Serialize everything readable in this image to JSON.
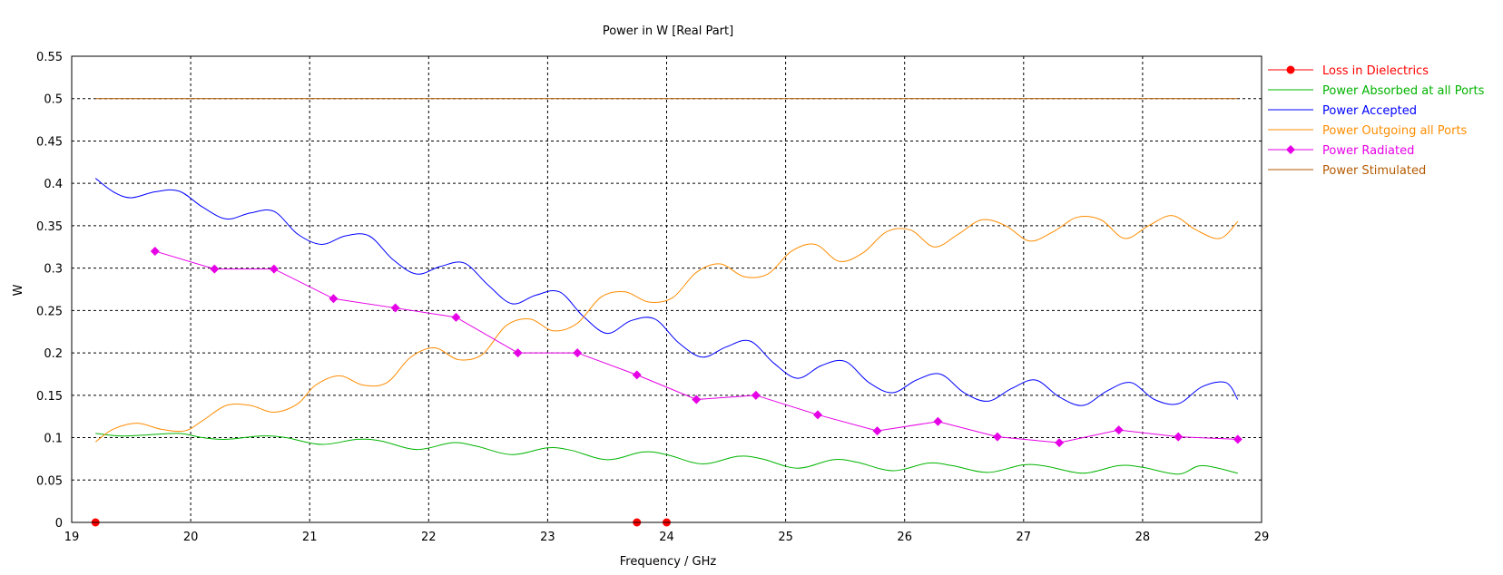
{
  "chart_data": {
    "type": "line",
    "title": "Power in W [Real Part]",
    "xlabel": "Frequency / GHz",
    "ylabel": "W",
    "xlim": [
      19,
      29
    ],
    "ylim": [
      0,
      0.55
    ],
    "x_ticks": [
      19,
      20,
      21,
      22,
      23,
      24,
      25,
      26,
      27,
      28,
      29
    ],
    "y_ticks": [
      0,
      0.05,
      0.1,
      0.15,
      0.2,
      0.25,
      0.3,
      0.35,
      0.4,
      0.45,
      0.5,
      0.55
    ],
    "x_tick_labels": [
      "19",
      "20",
      "21",
      "22",
      "23",
      "24",
      "25",
      "26",
      "27",
      "28",
      "29"
    ],
    "y_tick_labels": [
      "0",
      "0.05",
      "0.1",
      "0.15",
      "0.2",
      "0.25",
      "0.3",
      "0.35",
      "0.4",
      "0.45",
      "0.5",
      "0.55"
    ],
    "grid": true,
    "legend_position": "right",
    "series": [
      {
        "name": "Loss in Dielectrics",
        "color": "#ff0000",
        "marker": "circle",
        "x": [
          19.2,
          23.75,
          24.0,
          28.8
        ],
        "y": [
          0,
          0,
          0,
          0
        ],
        "marker_x": [
          19.2,
          23.75,
          24.0
        ]
      },
      {
        "name": "Power Absorbed at all Ports",
        "color": "#00b400",
        "marker": "none",
        "x": [
          19.2,
          19.4,
          19.6,
          19.9,
          20.1,
          20.3,
          20.6,
          20.8,
          21.1,
          21.4,
          21.6,
          21.9,
          22.2,
          22.4,
          22.7,
          23.0,
          23.2,
          23.5,
          23.8,
          24.0,
          24.3,
          24.6,
          24.8,
          25.1,
          25.4,
          25.6,
          25.9,
          26.2,
          26.4,
          26.7,
          27.0,
          27.2,
          27.5,
          27.8,
          28.0,
          28.3,
          28.5,
          28.8
        ],
        "y": [
          0.105,
          0.102,
          0.103,
          0.105,
          0.1,
          0.098,
          0.102,
          0.1,
          0.092,
          0.098,
          0.096,
          0.086,
          0.094,
          0.09,
          0.08,
          0.088,
          0.085,
          0.074,
          0.083,
          0.08,
          0.069,
          0.078,
          0.075,
          0.064,
          0.074,
          0.071,
          0.061,
          0.07,
          0.067,
          0.059,
          0.068,
          0.066,
          0.058,
          0.067,
          0.065,
          0.057,
          0.067,
          0.058
        ]
      },
      {
        "name": "Power Accepted",
        "color": "#0000ff",
        "marker": "none",
        "x": [
          19.2,
          19.35,
          19.5,
          19.7,
          19.9,
          20.1,
          20.3,
          20.5,
          20.7,
          20.9,
          21.1,
          21.3,
          21.5,
          21.7,
          21.9,
          22.1,
          22.3,
          22.5,
          22.7,
          22.9,
          23.1,
          23.3,
          23.5,
          23.7,
          23.9,
          24.1,
          24.3,
          24.5,
          24.7,
          24.9,
          25.1,
          25.3,
          25.5,
          25.7,
          25.9,
          26.1,
          26.3,
          26.5,
          26.7,
          26.9,
          27.1,
          27.3,
          27.5,
          27.7,
          27.9,
          28.1,
          28.3,
          28.5,
          28.7,
          28.8
        ],
        "y": [
          0.406,
          0.39,
          0.383,
          0.39,
          0.391,
          0.372,
          0.358,
          0.365,
          0.367,
          0.34,
          0.328,
          0.338,
          0.338,
          0.31,
          0.293,
          0.302,
          0.306,
          0.28,
          0.258,
          0.268,
          0.272,
          0.243,
          0.223,
          0.238,
          0.24,
          0.212,
          0.195,
          0.207,
          0.214,
          0.188,
          0.17,
          0.185,
          0.19,
          0.165,
          0.153,
          0.168,
          0.175,
          0.153,
          0.143,
          0.158,
          0.168,
          0.148,
          0.138,
          0.155,
          0.165,
          0.145,
          0.14,
          0.16,
          0.165,
          0.145
        ]
      },
      {
        "name": "Power Outgoing all Ports",
        "color": "#ff8c00",
        "marker": "none",
        "x": [
          19.2,
          19.35,
          19.55,
          19.75,
          19.95,
          20.1,
          20.3,
          20.5,
          20.7,
          20.9,
          21.05,
          21.25,
          21.45,
          21.65,
          21.85,
          22.05,
          22.25,
          22.45,
          22.65,
          22.85,
          23.05,
          23.25,
          23.45,
          23.65,
          23.85,
          24.05,
          24.25,
          24.45,
          24.65,
          24.85,
          25.05,
          25.25,
          25.45,
          25.65,
          25.85,
          26.05,
          26.25,
          26.45,
          26.65,
          26.85,
          27.05,
          27.25,
          27.45,
          27.65,
          27.85,
          28.05,
          28.25,
          28.45,
          28.65,
          28.8
        ],
        "y": [
          0.095,
          0.11,
          0.117,
          0.11,
          0.108,
          0.12,
          0.138,
          0.138,
          0.13,
          0.14,
          0.162,
          0.173,
          0.162,
          0.165,
          0.195,
          0.206,
          0.192,
          0.198,
          0.232,
          0.24,
          0.226,
          0.235,
          0.266,
          0.272,
          0.26,
          0.265,
          0.295,
          0.305,
          0.29,
          0.293,
          0.32,
          0.328,
          0.308,
          0.318,
          0.343,
          0.345,
          0.325,
          0.34,
          0.357,
          0.35,
          0.332,
          0.343,
          0.36,
          0.357,
          0.335,
          0.35,
          0.362,
          0.345,
          0.335,
          0.355
        ]
      },
      {
        "name": "Power Radiated",
        "color": "#e600e6",
        "marker": "diamond",
        "x": [
          19.7,
          20.2,
          20.7,
          21.2,
          21.72,
          22.23,
          22.75,
          23.25,
          23.75,
          24.25,
          24.75,
          25.27,
          25.77,
          26.28,
          26.78,
          27.3,
          27.8,
          28.3,
          28.8
        ],
        "y": [
          0.32,
          0.299,
          0.299,
          0.264,
          0.253,
          0.242,
          0.2,
          0.2,
          0.174,
          0.145,
          0.15,
          0.127,
          0.108,
          0.119,
          0.101,
          0.094,
          0.109,
          0.101,
          0.098
        ]
      },
      {
        "name": "Power Stimulated",
        "color": "#b45a00",
        "marker": "none",
        "x": [
          19.2,
          28.8
        ],
        "y": [
          0.5,
          0.5
        ]
      }
    ]
  }
}
